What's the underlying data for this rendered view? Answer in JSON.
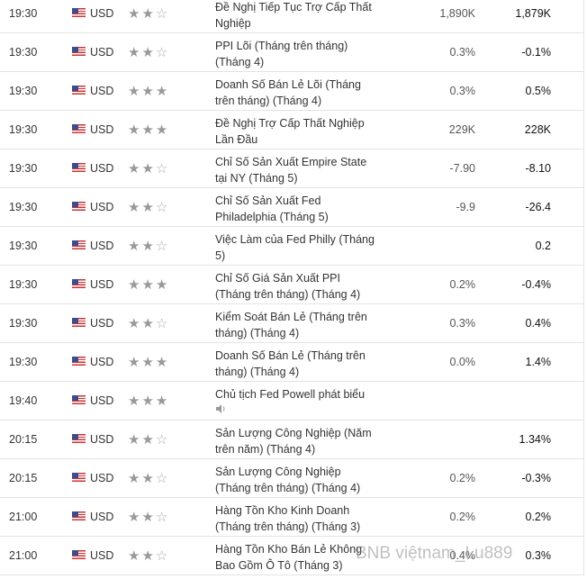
{
  "rows": [
    {
      "time": "19:30",
      "currency": "USD",
      "importance": 2,
      "event": "Đề Nghị Tiếp Tục Trợ Cấp Thất Nghiệp",
      "forecast": "1,890K",
      "previous": "1,879K"
    },
    {
      "time": "19:30",
      "currency": "USD",
      "importance": 2,
      "event": "PPI Lõi (Tháng trên tháng) (Tháng 4)",
      "forecast": "0.3%",
      "previous": "-0.1%"
    },
    {
      "time": "19:30",
      "currency": "USD",
      "importance": 3,
      "event": "Doanh Số Bán Lẻ Lõi (Tháng trên tháng) (Tháng 4)",
      "forecast": "0.3%",
      "previous": "0.5%"
    },
    {
      "time": "19:30",
      "currency": "USD",
      "importance": 3,
      "event": "Đề Nghị Trợ Cấp Thất Nghiệp Lần Đầu",
      "forecast": "229K",
      "previous": "228K"
    },
    {
      "time": "19:30",
      "currency": "USD",
      "importance": 2,
      "event": "Chỉ Số Sản Xuất Empire State tại NY (Tháng 5)",
      "forecast": "-7.90",
      "previous": "-8.10"
    },
    {
      "time": "19:30",
      "currency": "USD",
      "importance": 2,
      "event": "Chỉ Số Sản Xuất Fed Philadelphia (Tháng 5)",
      "forecast": "-9.9",
      "previous": "-26.4"
    },
    {
      "time": "19:30",
      "currency": "USD",
      "importance": 2,
      "event": "Việc Làm của Fed Philly (Tháng 5)",
      "forecast": null,
      "previous": "0.2"
    },
    {
      "time": "19:30",
      "currency": "USD",
      "importance": 3,
      "event": "Chỉ Số Giá Sản Xuất PPI (Tháng trên tháng) (Tháng 4)",
      "forecast": "0.2%",
      "previous": "-0.4%"
    },
    {
      "time": "19:30",
      "currency": "USD",
      "importance": 2,
      "event": "Kiểm Soát Bán Lẻ (Tháng trên tháng) (Tháng 4)",
      "forecast": "0.3%",
      "previous": "0.4%"
    },
    {
      "time": "19:30",
      "currency": "USD",
      "importance": 3,
      "event": "Doanh Số Bán Lẻ (Tháng trên tháng) (Tháng 4)",
      "forecast": "0.0%",
      "previous": "1.4%"
    },
    {
      "time": "19:40",
      "currency": "USD",
      "importance": 3,
      "event": "Chủ tịch Fed Powell phát biểu",
      "forecast": null,
      "previous": null,
      "speech": true
    },
    {
      "time": "20:15",
      "currency": "USD",
      "importance": 2,
      "event": "Sản Lượng Công Nghiệp (Năm trên năm) (Tháng 4)",
      "forecast": null,
      "previous": "1.34%"
    },
    {
      "time": "20:15",
      "currency": "USD",
      "importance": 2,
      "event": "Sản Lượng Công Nghiệp (Tháng trên tháng) (Tháng 4)",
      "forecast": "0.2%",
      "previous": "-0.3%"
    },
    {
      "time": "21:00",
      "currency": "USD",
      "importance": 2,
      "event": "Hàng Tồn Kho Kinh Doanh (Tháng trên tháng) (Tháng 3)",
      "forecast": "0.2%",
      "previous": "0.2%"
    },
    {
      "time": "21:00",
      "currency": "USD",
      "importance": 2,
      "event": "Hàng Tồn Kho Bán Lẻ Không Bao Gồm Ô Tô (Tháng 3)",
      "forecast": "0.4%",
      "previous": "0.3%"
    }
  ],
  "watermark": "BNB việtnam_Lu889"
}
